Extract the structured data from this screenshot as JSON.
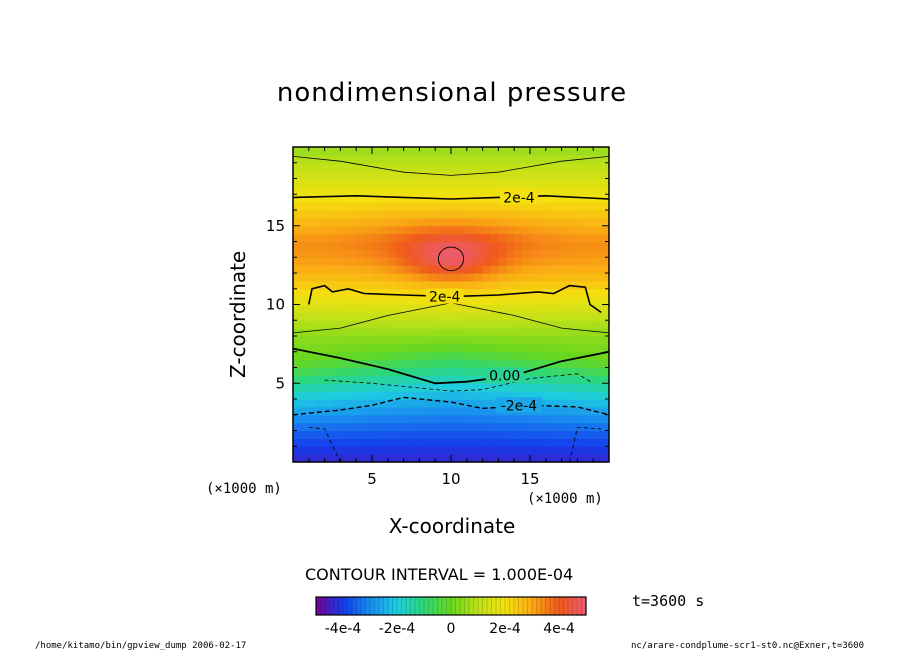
{
  "chart_data": {
    "type": "heatmap",
    "title": "nondimensional pressure",
    "xlabel": "X-coordinate",
    "ylabel": "Z-coordinate",
    "x_unit_label": "(×1000 m)",
    "y_unit_label": "(×1000 m)",
    "xlim": [
      0,
      20
    ],
    "ylim": [
      0,
      20
    ],
    "x_ticks": [
      5,
      10,
      15
    ],
    "y_ticks": [
      5,
      10,
      15
    ],
    "contour_interval_label": "CONTOUR INTERVAL = 1.000E-04",
    "contour_interval": 0.0001,
    "contour_labels": [
      "2e-4",
      "2e-4",
      "0.00",
      "-2e-4"
    ],
    "colorbar": {
      "min": -0.0005,
      "max": 0.0005,
      "tick_labels": [
        "-4e-4",
        "-2e-4",
        "0",
        "2e-4",
        "4e-4"
      ],
      "tick_values": [
        -0.0004,
        -0.0002,
        0,
        0.0002,
        0.0004
      ]
    },
    "field_description": "pressure perturbation peaks near x=10, z=13 (~4e-4), zero contour near z=5-6, minimum (~-4e-4) near bottom"
  },
  "annotations": {
    "time": "t=3600 s",
    "footer_left": "/home/kitamo/bin/gpview_dump  2006-02-17",
    "footer_right": "nc/arare-condplume-scr1-st0.nc@Exner,t=3600"
  }
}
